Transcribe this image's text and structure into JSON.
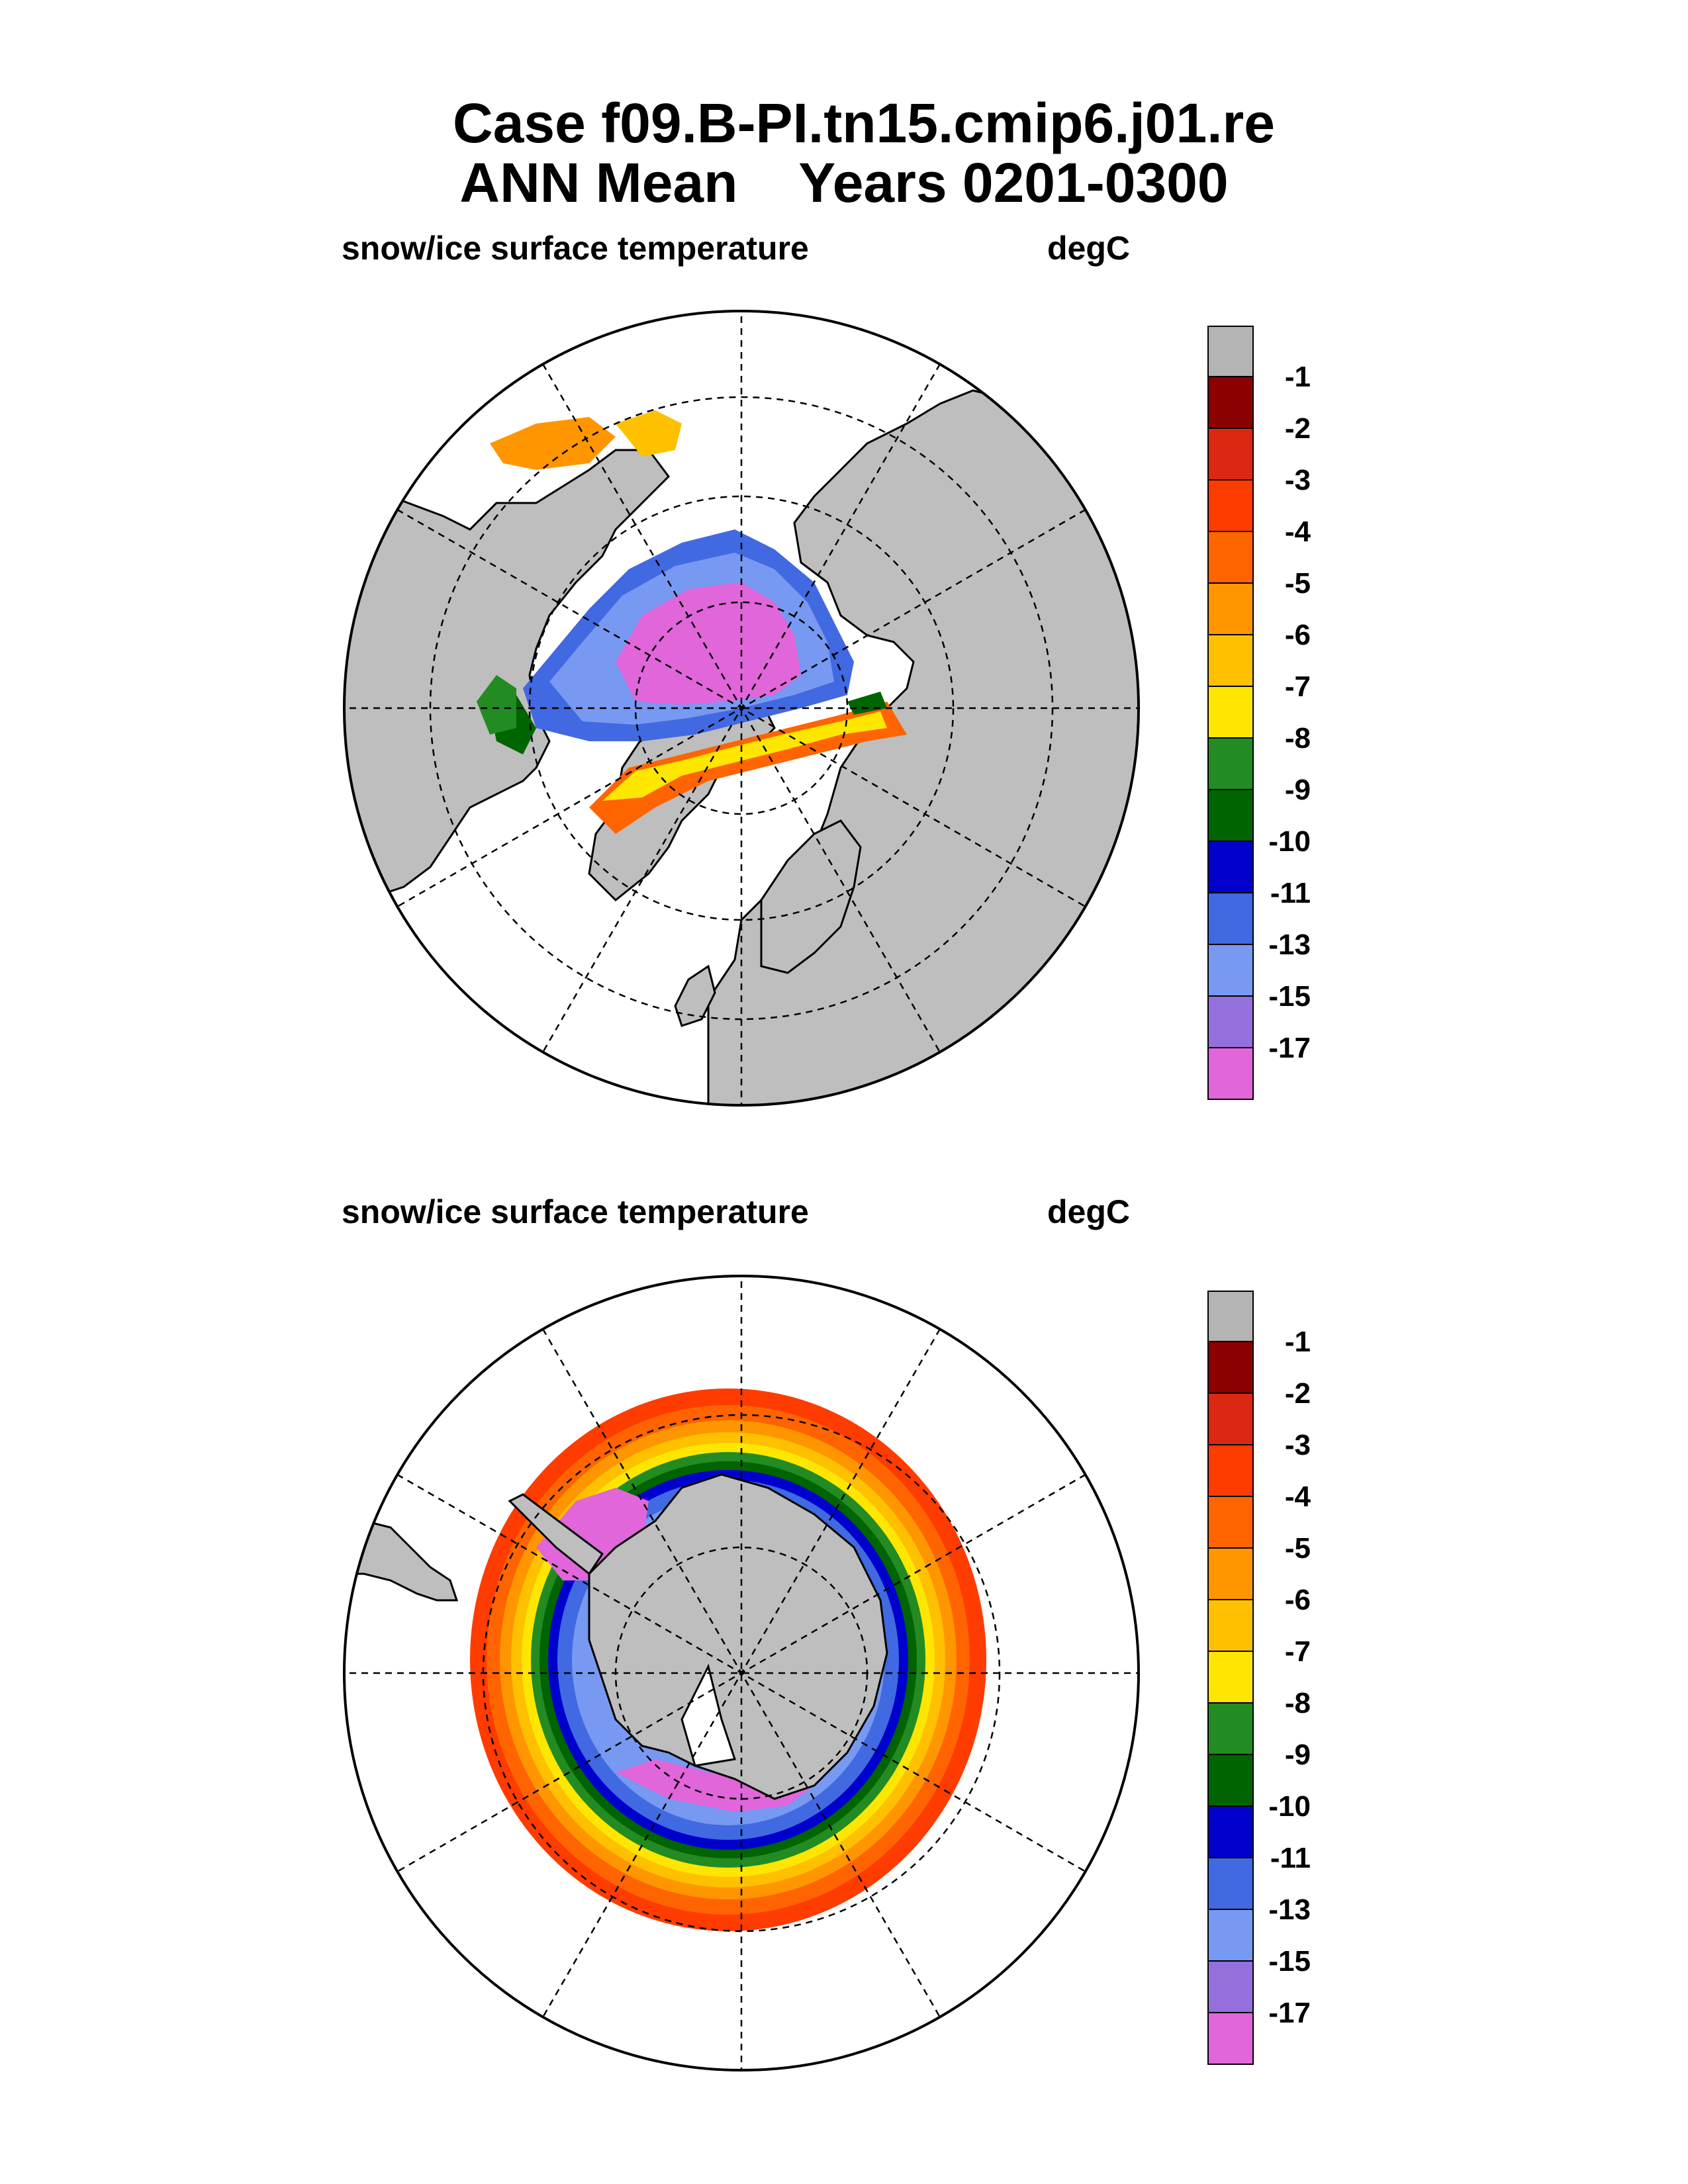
{
  "header": {
    "title_line1": "Case f09.B-PI.tn15.cmip6.j01.re",
    "title_line2": "ANN Mean    Years 0201-0300"
  },
  "panels": [
    {
      "hemisphere": "north",
      "subtitle_left": "snow/ice surface temperature",
      "subtitle_right": "degC"
    },
    {
      "hemisphere": "south",
      "subtitle_left": "snow/ice surface temperature",
      "subtitle_right": "degC"
    }
  ],
  "colorbar": {
    "levels": [
      "-1",
      "-2",
      "-3",
      "-4",
      "-5",
      "-6",
      "-7",
      "-8",
      "-9",
      "-10",
      "-11",
      "-13",
      "-15",
      "-17"
    ],
    "colors": [
      "#b4b4b4",
      "#8b0000",
      "#dc2812",
      "#ff3c00",
      "#ff6400",
      "#ff9600",
      "#ffc000",
      "#ffe600",
      "#228b22",
      "#006400",
      "#0000cd",
      "#4169e1",
      "#7799f2",
      "#9370db",
      "#e066da"
    ]
  },
  "map_colors": {
    "land": "#bebebe",
    "ocean": "#ffffff",
    "grid": "#000000"
  }
}
